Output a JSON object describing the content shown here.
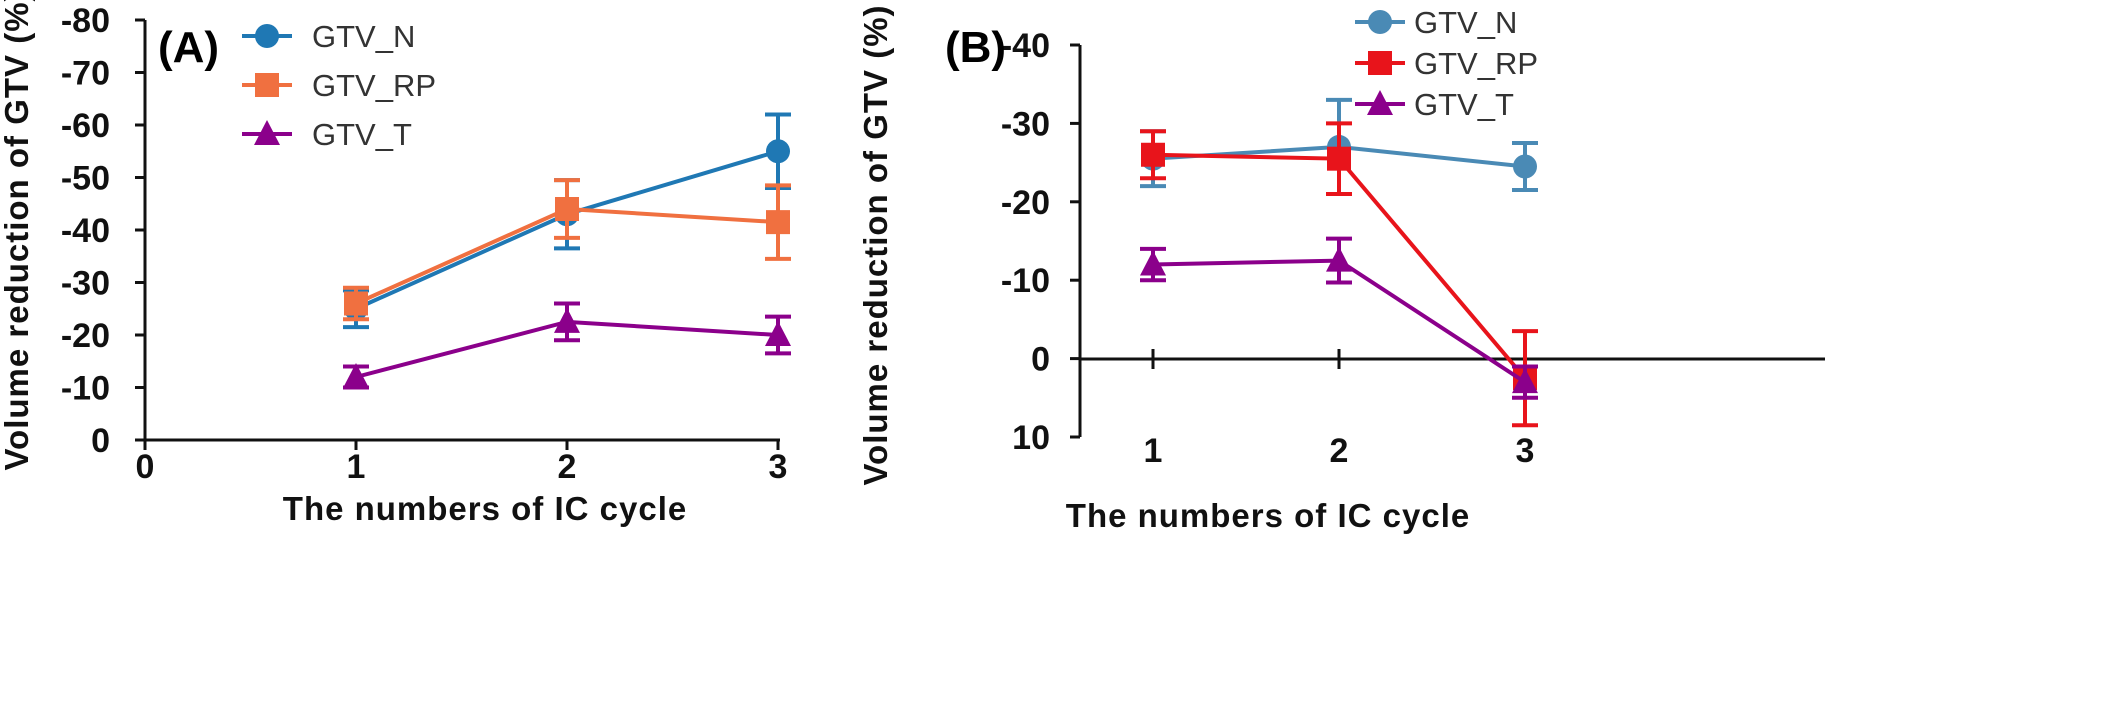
{
  "chart_data": [
    {
      "type": "line",
      "panel_label": "(A)",
      "xlabel": "The numbers of IC cycle",
      "ylabel": "Volume reduction of GTV (%)",
      "x_ticks": [
        0,
        1,
        2,
        3
      ],
      "xlim": [
        0,
        3
      ],
      "y_ticks": [
        0,
        -10,
        -20,
        -30,
        -40,
        -50,
        -60,
        -70,
        -80
      ],
      "ylim": [
        0,
        -80
      ],
      "y_inverted": true,
      "legend_position": "top-center",
      "series": [
        {
          "name": "GTV_N",
          "color": "#1f78b4",
          "marker": "circle",
          "x": [
            1,
            2,
            3
          ],
          "y": [
            -25,
            -43,
            -55
          ],
          "err": [
            3.5,
            6.5,
            7
          ]
        },
        {
          "name": "GTV_RP",
          "color": "#f07040",
          "marker": "square",
          "x": [
            1,
            2,
            3
          ],
          "y": [
            -26,
            -44,
            -41.5
          ],
          "err": [
            3,
            5.5,
            7
          ]
        },
        {
          "name": "GTV_T",
          "color": "#8b008b",
          "marker": "triangle",
          "x": [
            1,
            2,
            3
          ],
          "y": [
            -12,
            -22.5,
            -20
          ],
          "err": [
            2,
            3.5,
            3.5
          ]
        }
      ]
    },
    {
      "type": "line",
      "panel_label": "(B)",
      "xlabel": "The numbers of IC cycle",
      "ylabel": "Volume reduction of GTV (%)",
      "x_ticks": [
        1,
        2,
        3
      ],
      "y_ticks": [
        10,
        0,
        -10,
        -20,
        -30,
        -40
      ],
      "ylim": [
        10,
        -40
      ],
      "y_inverted": true,
      "legend_position": "top-right",
      "series": [
        {
          "name": "GTV_N",
          "color": "#4a8ab5",
          "marker": "circle",
          "x": [
            1,
            2,
            3
          ],
          "y": [
            -25.5,
            -27,
            -24.5
          ],
          "err": [
            3.5,
            6,
            3
          ]
        },
        {
          "name": "GTV_RP",
          "color": "#e8141b",
          "marker": "square",
          "x": [
            1,
            2,
            3
          ],
          "y": [
            -26,
            -25.5,
            2.5
          ],
          "err": [
            3,
            4.5,
            6
          ]
        },
        {
          "name": "GTV_T",
          "color": "#8b008b",
          "marker": "triangle",
          "x": [
            1,
            2,
            3
          ],
          "y": [
            -12,
            -12.5,
            3
          ],
          "err": [
            2,
            2.8,
            2
          ]
        }
      ]
    }
  ]
}
